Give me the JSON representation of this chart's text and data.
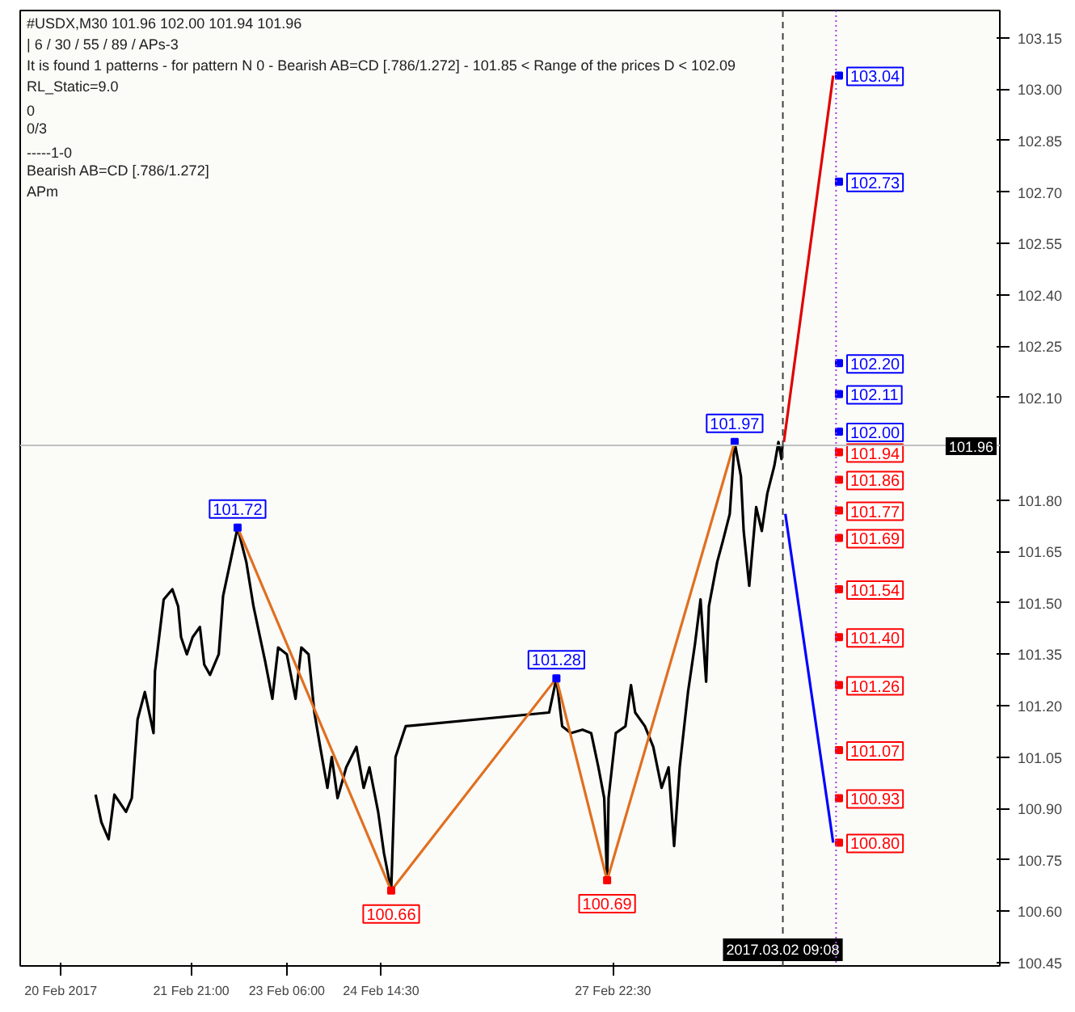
{
  "chart_data": {
    "type": "line",
    "title": "#USDX,M30  101.96 102.00 101.94 101.96",
    "annotations": [
      "| 6 / 30 / 55 / 89 / APs-3",
      "It is found 1 patterns  -  for pattern N 0 - Bearish AB=CD [.786/1.272] - 101.85 < Range of the prices D < 102.09",
      "RL_Static=9.0",
      "0",
      "0/3",
      "-----1-0",
      "Bearish AB=CD [.786/1.272]",
      "APm"
    ],
    "xlim": [
      "2017-02-19T10:00",
      "2017-03-05T12:00"
    ],
    "ylim": [
      100.44,
      103.23
    ],
    "xticks": [
      {
        "value": "2017-02-20",
        "label": "20 Feb 2017"
      },
      {
        "value": "2017-02-21T21:00",
        "label": "21 Feb 21:00"
      },
      {
        "value": "2017-02-23T06:00",
        "label": "23 Feb 06:00"
      },
      {
        "value": "2017-02-24T14:30",
        "label": "24 Feb 14:30"
      },
      {
        "value": "2017-02-27T22:30",
        "label": "27 Feb 22:30"
      }
    ],
    "yticks": [
      {
        "value": 100.45,
        "label": "100.45"
      },
      {
        "value": 100.6,
        "label": "100.60"
      },
      {
        "value": 100.75,
        "label": "100.75"
      },
      {
        "value": 100.9,
        "label": "100.90"
      },
      {
        "value": 101.05,
        "label": "101.05"
      },
      {
        "value": 101.2,
        "label": "101.20"
      },
      {
        "value": 101.35,
        "label": "101.35"
      },
      {
        "value": 101.5,
        "label": "101.50"
      },
      {
        "value": 101.65,
        "label": "101.65"
      },
      {
        "value": 101.8,
        "label": "101.80"
      },
      {
        "value": 102.1,
        "label": "102.10"
      },
      {
        "value": 102.25,
        "label": "102.25"
      },
      {
        "value": 102.4,
        "label": "102.40"
      },
      {
        "value": 102.55,
        "label": "102.55"
      },
      {
        "value": 102.7,
        "label": "102.70"
      },
      {
        "value": 102.85,
        "label": "102.85"
      },
      {
        "value": 103.0,
        "label": "103.00"
      },
      {
        "value": 103.15,
        "label": "103.15"
      }
    ],
    "ref_lines": [
      {
        "axis": "y",
        "value": 101.96,
        "label": "101.96",
        "color": "#c0c0c0",
        "line_style": "solid"
      },
      {
        "axis": "x",
        "value": "2017-03-02T09:08",
        "label": "2017.03.02 09:08",
        "color": "#404040",
        "line_style": "dashed"
      },
      {
        "axis": "x",
        "value": "2017-03-03T03:30",
        "color": "#a040e0",
        "line_style": "dotted"
      }
    ],
    "series": [
      {
        "color": "#000000",
        "x": [
          "2017-02-20T12:00",
          "2017-02-20T14:00",
          "2017-02-20T16:30",
          "2017-02-20T18:30",
          "2017-02-20T22:30",
          "2017-02-21T00:30",
          "2017-02-21T02:30",
          "2017-02-21T05:00",
          "2017-02-21T08:00",
          "2017-02-21T08:30",
          "2017-02-21T11:30",
          "2017-02-21T14:30",
          "2017-02-21T16:30",
          "2017-02-21T17:30",
          "2017-02-21T19:30",
          "2017-02-21T21:30",
          "2017-02-22T00:00",
          "2017-02-22T01:30",
          "2017-02-22T03:30",
          "2017-02-22T06:30",
          "2017-02-22T08:00",
          "2017-02-22T11:00",
          "2017-02-22T13:00",
          "2017-02-22T16:00",
          "2017-02-22T18:30",
          "2017-02-22T20:30",
          "2017-02-22T22:30",
          "2017-02-23T01:00",
          "2017-02-23T03:00",
          "2017-02-23T06:00",
          "2017-02-23T09:00",
          "2017-02-23T11:00",
          "2017-02-23T13:30",
          "2017-02-23T15:30",
          "2017-02-23T17:30",
          "2017-02-23T20:00",
          "2017-02-23T21:30",
          "2017-02-23T23:30",
          "2017-02-24T02:30",
          "2017-02-24T06:00",
          "2017-02-24T08:30",
          "2017-02-24T10:30",
          "2017-02-24T13:30",
          "2017-02-24T15:30",
          "2017-02-24T18:00",
          "2017-02-24T19:30",
          "2017-02-24T23:00",
          "2017-02-27T00:30",
          "2017-02-27T03:00",
          "2017-02-27T05:00",
          "2017-02-27T08:00",
          "2017-02-27T12:00",
          "2017-02-27T15:00",
          "2017-02-27T17:30",
          "2017-02-27T19:30",
          "2017-02-27T20:30",
          "2017-02-27T21:00",
          "2017-02-27T23:30",
          "2017-02-28T02:50",
          "2017-02-28T04:44",
          "2017-02-28T06:11",
          "2017-02-28T09:32",
          "2017-02-28T12:25",
          "2017-02-28T15:18",
          "2017-02-28T17:42",
          "2017-02-28T19:37",
          "2017-02-28T21:32",
          "2017-03-01T00:25",
          "2017-03-01T02:49",
          "2017-03-01T04:44",
          "2017-03-01T06:40",
          "2017-03-01T07:37",
          "2017-03-01T10:30",
          "2017-03-01T12:25",
          "2017-03-01T14:49",
          "2017-03-01T16:30",
          "2017-03-01T18:40",
          "2017-03-01T19:37",
          "2017-03-01T21:32",
          "2017-03-01T23:56",
          "2017-03-02T01:52",
          "2017-03-02T03:47",
          "2017-03-02T06:11",
          "2017-03-02T07:37",
          "2017-03-02T08:40",
          "2017-03-02T09:00"
        ],
        "values": [
          100.94,
          100.86,
          100.81,
          100.94,
          100.89,
          100.93,
          101.16,
          101.24,
          101.12,
          101.3,
          101.51,
          101.54,
          101.49,
          101.4,
          101.35,
          101.4,
          101.43,
          101.32,
          101.29,
          101.35,
          101.52,
          101.64,
          101.72,
          101.62,
          101.49,
          101.41,
          101.33,
          101.22,
          101.37,
          101.35,
          101.22,
          101.37,
          101.35,
          101.18,
          101.08,
          100.96,
          101.05,
          100.93,
          101.02,
          101.08,
          100.96,
          101.02,
          100.89,
          100.77,
          100.66,
          101.05,
          101.14,
          101.18,
          101.28,
          101.14,
          101.12,
          101.13,
          101.12,
          101.02,
          100.93,
          100.69,
          100.93,
          101.12,
          101.14,
          101.26,
          101.18,
          101.14,
          101.08,
          100.96,
          101.02,
          100.79,
          101.02,
          101.24,
          101.38,
          101.51,
          101.27,
          101.49,
          101.62,
          101.68,
          101.76,
          101.97,
          101.87,
          101.71,
          101.55,
          101.78,
          101.71,
          101.82,
          101.9,
          101.97,
          101.92,
          101.96
        ]
      },
      {
        "color": "#e07020",
        "x": [
          "2017-02-22T13:00",
          "2017-02-24T18:00",
          "2017-02-27T03:00",
          "2017-02-27T20:30",
          "2017-03-01T16:30"
        ],
        "values": [
          101.72,
          100.66,
          101.28,
          100.69,
          101.97
        ]
      },
      {
        "color": "#e00000",
        "x": [
          "2017-03-02T09:30",
          "2017-03-03T02:30"
        ],
        "values": [
          101.97,
          103.04
        ]
      },
      {
        "color": "#0000ff",
        "x": [
          "2017-03-02T10:00",
          "2017-03-03T02:30"
        ],
        "values": [
          101.76,
          100.8
        ]
      },
      {
        "type": "scatter",
        "marker": "square",
        "color": "#0000ff",
        "x": [
          "2017-02-22T13:00",
          "2017-02-27T03:00",
          "2017-03-01T16:30",
          "2017-03-03T04:30",
          "2017-03-03T04:30",
          "2017-03-03T04:30",
          "2017-03-03T04:30",
          "2017-03-03T04:30"
        ],
        "values": [
          101.72,
          101.28,
          101.97,
          103.04,
          102.73,
          102.2,
          102.11,
          102.0
        ],
        "value_labels": [
          "101.72",
          "101.28",
          "101.97",
          "103.04",
          "102.73",
          "102.20",
          "102.11",
          "102.00"
        ]
      },
      {
        "type": "scatter",
        "marker": "square",
        "color": "#ff0000",
        "x": [
          "2017-02-24T18:00",
          "2017-02-27T20:30",
          "2017-03-03T04:30",
          "2017-03-03T04:30",
          "2017-03-03T04:30",
          "2017-03-03T04:30",
          "2017-03-03T04:30",
          "2017-03-03T04:30",
          "2017-03-03T04:30",
          "2017-03-03T04:30",
          "2017-03-03T04:30",
          "2017-03-03T04:30"
        ],
        "values": [
          100.66,
          100.69,
          101.94,
          101.86,
          101.77,
          101.69,
          101.54,
          101.4,
          101.26,
          101.07,
          100.93,
          100.8
        ],
        "value_labels": [
          "100.66",
          "100.69",
          "101.94",
          "101.86",
          "101.77",
          "101.69",
          "101.54",
          "101.40",
          "101.26",
          "101.07",
          "100.93",
          "100.80"
        ]
      }
    ]
  }
}
